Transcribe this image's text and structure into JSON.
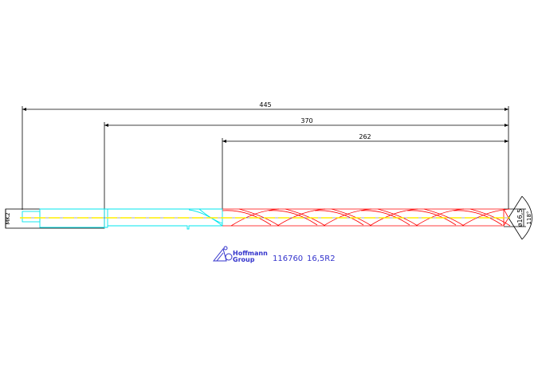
{
  "dimensions": {
    "overall_length": "445",
    "flute_plus_neck_length": "370",
    "flute_length": "262",
    "shank_taper": "MK2",
    "diameter": "ø16,5",
    "point_angle": "118°"
  },
  "title_block": {
    "logo_line1": "Hoffmann",
    "logo_line2": "Group",
    "article_number": "116760",
    "size_code": "16,5R2"
  },
  "colors": {
    "dimension": "#000000",
    "shank": "#00e5ee",
    "flutes": "#ff0000",
    "centerline": "#ffee00",
    "brand": "#3333cc"
  }
}
